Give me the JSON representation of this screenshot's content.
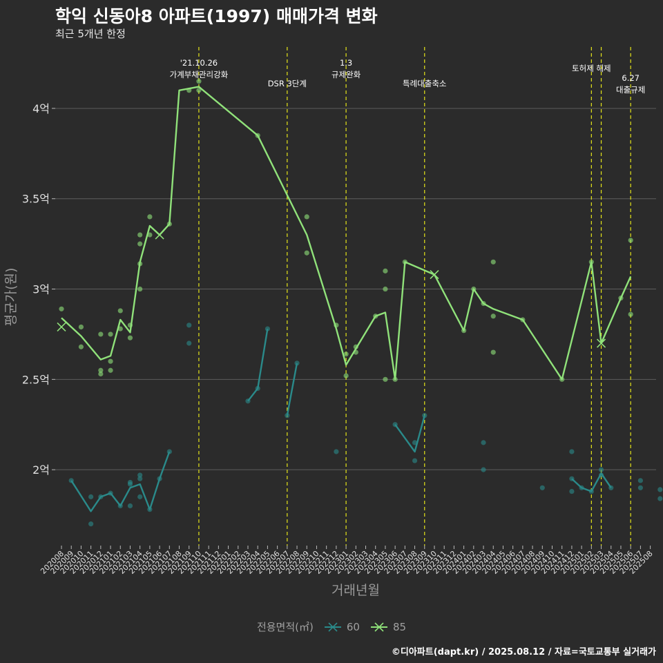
{
  "title": "학익 신동아8 아파트(1997) 매매가격 변화",
  "subtitle": "최근 5개년 한정",
  "caption": "©디아파트(dapt.kr) / 2025.08.12 / 자료=국토교통부 실거래가",
  "legend": {
    "title": "전용면적(㎡)",
    "items": [
      {
        "label": "60",
        "color": "#2a8a8a"
      },
      {
        "label": "85",
        "color": "#90e27a"
      }
    ]
  },
  "chart_data": {
    "type": "line",
    "xlabel": "거래년월",
    "ylabel": "평균가(원)",
    "x": [
      "202008",
      "202009",
      "202010",
      "202011",
      "202012",
      "202101",
      "202102",
      "202103",
      "202104",
      "202105",
      "202106",
      "202107",
      "202108",
      "202109",
      "202110",
      "202111",
      "202112",
      "202201",
      "202202",
      "202203",
      "202204",
      "202205",
      "202206",
      "202207",
      "202208",
      "202209",
      "202210",
      "202211",
      "202212",
      "202301",
      "202302",
      "202303",
      "202304",
      "202305",
      "202306",
      "202307",
      "202308",
      "202309",
      "202310",
      "202311",
      "202312",
      "202401",
      "202402",
      "202403",
      "202404",
      "202405",
      "202406",
      "202407",
      "202408",
      "202409",
      "202410",
      "202411",
      "202412",
      "202501",
      "202502",
      "202503",
      "202504",
      "202505",
      "202506",
      "202507",
      "202508"
    ],
    "yticks": [
      2.0,
      2.5,
      3.0,
      3.5,
      4.0
    ],
    "ytick_labels": [
      "2억",
      "2.5억",
      "3억",
      "3.5억",
      "4억"
    ],
    "ylim": [
      1.58,
      4.34
    ],
    "events": [
      {
        "x": "202110",
        "label": [
          "'21.10.26",
          "가계부채관리강화"
        ],
        "level": 0
      },
      {
        "x": "202207",
        "label": [
          "DSR 3단계"
        ],
        "level": 1
      },
      {
        "x": "202301",
        "label": [
          "1.3",
          "규제완화"
        ],
        "level": 0
      },
      {
        "x": "202309",
        "label": [
          "특례대출축소"
        ],
        "level": 1
      },
      {
        "x": "202502",
        "label": [
          "토허제 해제"
        ],
        "level": 0
      },
      {
        "x": "202503",
        "label": [],
        "level": 0
      },
      {
        "x": "202506",
        "label": [
          "6.27",
          "대출규제"
        ],
        "level": 2
      }
    ],
    "series": [
      {
        "name": "60",
        "color": "#2a8a8a",
        "lines": [
          [
            [
              "202009",
              1.94
            ],
            [
              "202011",
              1.77
            ],
            [
              "202012",
              1.85
            ],
            [
              "202101",
              1.87
            ],
            [
              "202102",
              1.8
            ],
            [
              "202103",
              1.9
            ],
            [
              "202104",
              1.92
            ],
            [
              "202105",
              1.78
            ],
            [
              "202106",
              1.95
            ],
            [
              "202107",
              2.1
            ]
          ],
          [
            [
              "202203",
              2.38
            ],
            [
              "202204",
              2.45
            ],
            [
              "202205",
              2.78
            ]
          ],
          [
            [
              "202207",
              2.3
            ],
            [
              "202208",
              2.59
            ]
          ],
          [
            [
              "202306",
              2.25
            ],
            [
              "202308",
              2.1
            ],
            [
              "202309",
              2.3
            ]
          ],
          [
            [
              "202412",
              1.95
            ],
            [
              "202501",
              1.9
            ],
            [
              "202502",
              1.88
            ],
            [
              "202503",
              1.98
            ],
            [
              "202504",
              1.9
            ]
          ]
        ],
        "points": [
          [
            "202009",
            1.94
          ],
          [
            "202011",
            1.85
          ],
          [
            "202011",
            1.7
          ],
          [
            "202012",
            1.85
          ],
          [
            "202101",
            1.87
          ],
          [
            "202102",
            1.8
          ],
          [
            "202103",
            1.93
          ],
          [
            "202103",
            1.92
          ],
          [
            "202103",
            1.8
          ],
          [
            "202104",
            1.97
          ],
          [
            "202104",
            1.95
          ],
          [
            "202104",
            1.85
          ],
          [
            "202105",
            1.78
          ],
          [
            "202106",
            1.95
          ],
          [
            "202107",
            2.1
          ],
          [
            "202109",
            2.8
          ],
          [
            "202109",
            2.7
          ],
          [
            "202203",
            2.38
          ],
          [
            "202204",
            2.45
          ],
          [
            "202205",
            2.78
          ],
          [
            "202207",
            2.3
          ],
          [
            "202208",
            2.59
          ],
          [
            "202212",
            2.1
          ],
          [
            "202306",
            2.25
          ],
          [
            "202308",
            2.15
          ],
          [
            "202308",
            2.05
          ],
          [
            "202309",
            2.3
          ],
          [
            "202403",
            2.15
          ],
          [
            "202403",
            2.0
          ],
          [
            "202409",
            1.9
          ],
          [
            "202412",
            2.1
          ],
          [
            "202412",
            1.95
          ],
          [
            "202412",
            1.88
          ],
          [
            "202501",
            1.9
          ],
          [
            "202502",
            1.88
          ],
          [
            "202503",
            2.0
          ],
          [
            "202503",
            1.97
          ],
          [
            "202504",
            1.9
          ],
          [
            "202507",
            1.94
          ],
          [
            "202507",
            1.9
          ],
          [
            "202509",
            1.89
          ],
          [
            "202509",
            1.84
          ]
        ],
        "cross": []
      },
      {
        "name": "85",
        "color": "#90e27a",
        "lines": [
          [
            [
              "202008",
              2.84
            ],
            [
              "202010",
              2.74
            ],
            [
              "202012",
              2.61
            ],
            [
              "202101",
              2.63
            ],
            [
              "202102",
              2.83
            ],
            [
              "202103",
              2.76
            ],
            [
              "202104",
              3.15
            ],
            [
              "202105",
              3.35
            ],
            [
              "202106",
              3.3
            ],
            [
              "202107",
              3.36
            ],
            [
              "202108",
              4.1
            ],
            [
              "202110",
              4.12
            ],
            [
              "202204",
              3.85
            ],
            [
              "202209",
              3.3
            ],
            [
              "202212",
              2.78
            ],
            [
              "202301",
              2.58
            ],
            [
              "202302",
              2.67
            ],
            [
              "202304",
              2.85
            ],
            [
              "202305",
              2.87
            ],
            [
              "202306",
              2.5
            ],
            [
              "202307",
              3.15
            ],
            [
              "202310",
              3.08
            ],
            [
              "202401",
              2.77
            ],
            [
              "202402",
              3.0
            ],
            [
              "202403",
              2.92
            ],
            [
              "202404",
              2.89
            ],
            [
              "202407",
              2.83
            ],
            [
              "202411",
              2.5
            ],
            [
              "202502",
              3.15
            ],
            [
              "202503",
              2.7
            ],
            [
              "202505",
              2.95
            ],
            [
              "202506",
              3.07
            ]
          ]
        ],
        "points": [
          [
            "202008",
            2.89
          ],
          [
            "202010",
            2.79
          ],
          [
            "202010",
            2.68
          ],
          [
            "202012",
            2.75
          ],
          [
            "202012",
            2.55
          ],
          [
            "202012",
            2.53
          ],
          [
            "202101",
            2.75
          ],
          [
            "202101",
            2.6
          ],
          [
            "202101",
            2.55
          ],
          [
            "202102",
            2.88
          ],
          [
            "202102",
            2.78
          ],
          [
            "202103",
            2.8
          ],
          [
            "202103",
            2.73
          ],
          [
            "202104",
            3.3
          ],
          [
            "202104",
            3.25
          ],
          [
            "202104",
            3.14
          ],
          [
            "202104",
            3.0
          ],
          [
            "202105",
            3.4
          ],
          [
            "202105",
            3.3
          ],
          [
            "202107",
            3.36
          ],
          [
            "202109",
            4.1
          ],
          [
            "202110",
            4.15
          ],
          [
            "202110",
            4.1
          ],
          [
            "202204",
            3.85
          ],
          [
            "202209",
            3.4
          ],
          [
            "202209",
            3.2
          ],
          [
            "202212",
            2.8
          ],
          [
            "202301",
            2.64
          ],
          [
            "202301",
            2.52
          ],
          [
            "202302",
            2.68
          ],
          [
            "202302",
            2.65
          ],
          [
            "202304",
            2.85
          ],
          [
            "202305",
            3.1
          ],
          [
            "202305",
            3.0
          ],
          [
            "202305",
            2.5
          ],
          [
            "202306",
            2.5
          ],
          [
            "202307",
            3.15
          ],
          [
            "202401",
            2.77
          ],
          [
            "202402",
            3.0
          ],
          [
            "202403",
            2.92
          ],
          [
            "202404",
            3.15
          ],
          [
            "202404",
            2.85
          ],
          [
            "202404",
            2.65
          ],
          [
            "202407",
            2.83
          ],
          [
            "202411",
            2.5
          ],
          [
            "202502",
            3.15
          ],
          [
            "202505",
            2.95
          ],
          [
            "202506",
            3.27
          ],
          [
            "202506",
            2.86
          ]
        ],
        "cross": [
          [
            "202008",
            2.79
          ],
          [
            "202106",
            3.3
          ],
          [
            "202310",
            3.08
          ],
          [
            "202503",
            2.7
          ]
        ]
      }
    ]
  }
}
